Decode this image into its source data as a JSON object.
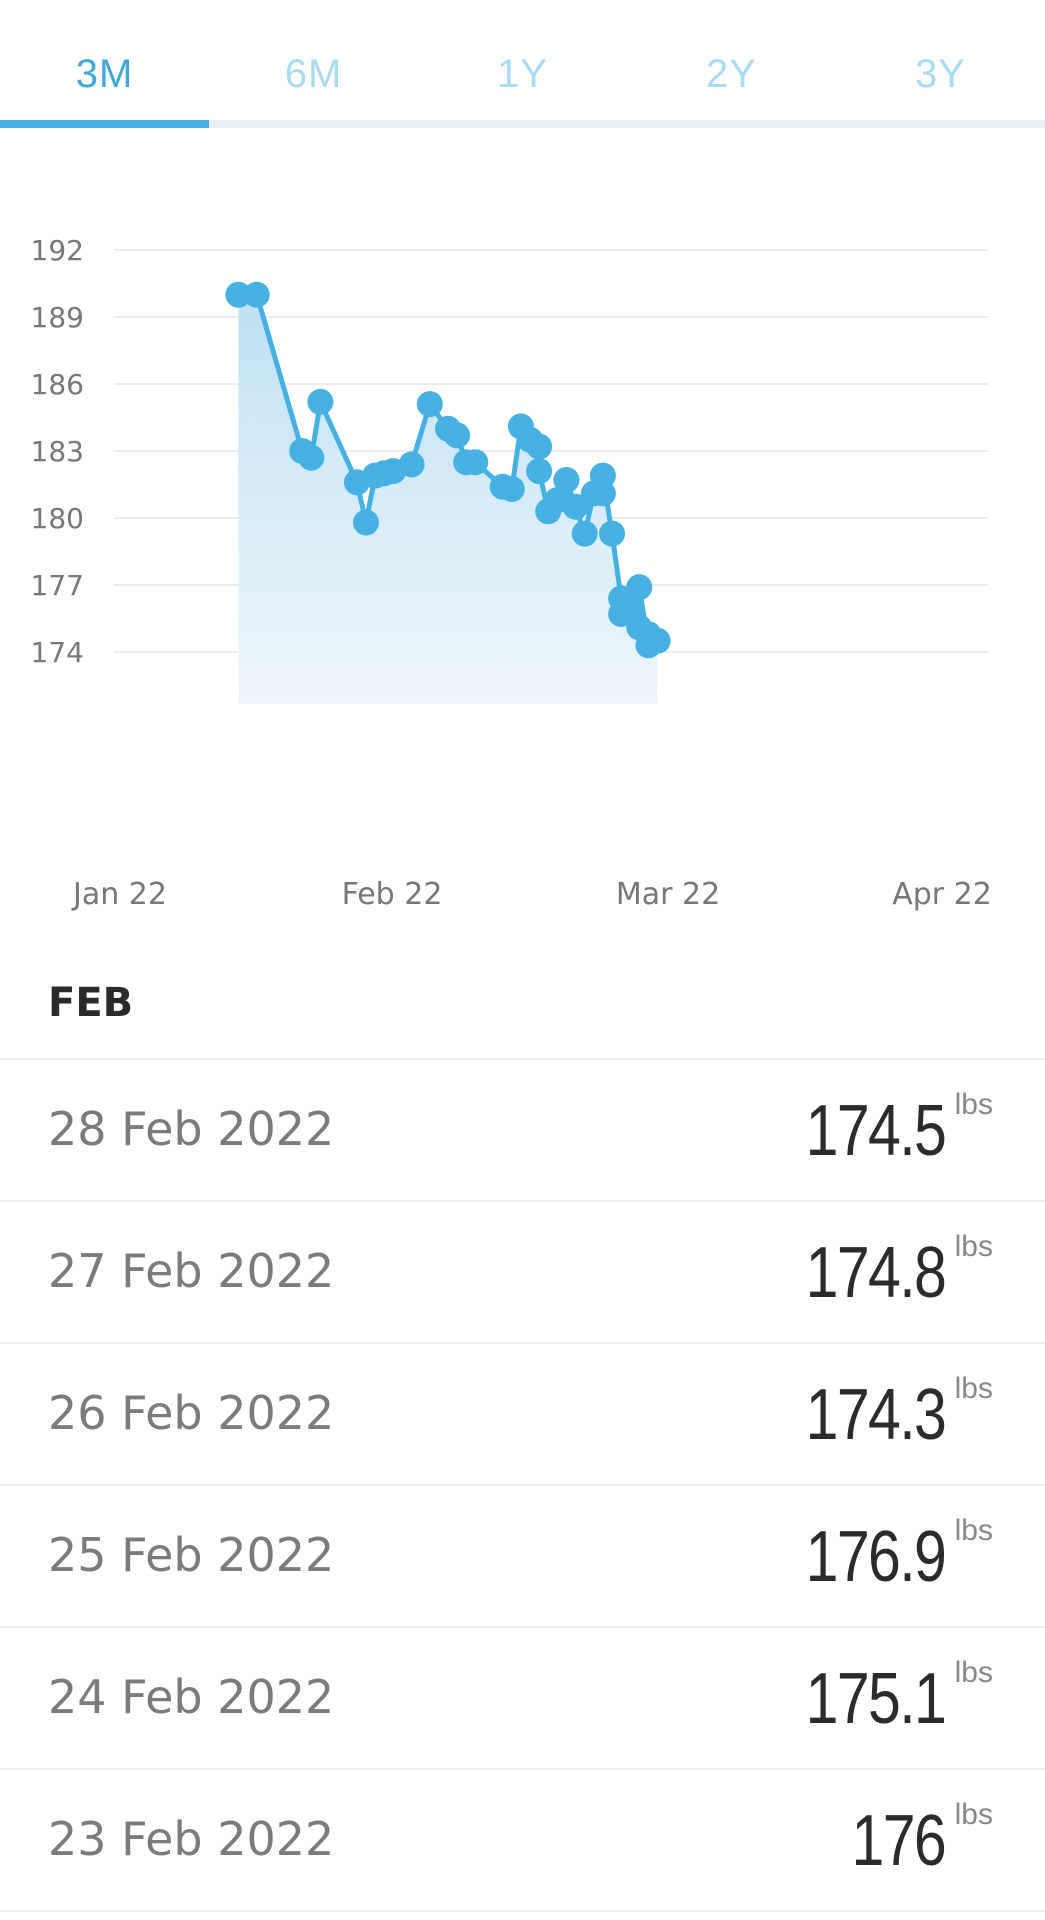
{
  "tabs": [
    {
      "label": "3M",
      "active": true
    },
    {
      "label": "6M",
      "active": false
    },
    {
      "label": "1Y",
      "active": false
    },
    {
      "label": "2Y",
      "active": false
    },
    {
      "label": "3Y",
      "active": false
    }
  ],
  "colors": {
    "accent": "#45b1e3",
    "tab_inactive": "#a9dcf1"
  },
  "chart_data": {
    "type": "area",
    "ylim": [
      174,
      192
    ],
    "yticks": [
      192,
      189,
      186,
      183,
      180,
      177,
      174
    ],
    "xticks": [
      "Jan 22",
      "Feb 22",
      "Mar 22",
      "Apr 22"
    ],
    "x_range": [
      "2022-01-01",
      "2022-04-01"
    ],
    "grid": true,
    "series": [
      {
        "points": [
          [
            "2022-01-14",
            190.0
          ],
          [
            "2022-01-16",
            190.0
          ],
          [
            "2022-01-21",
            183.0
          ],
          [
            "2022-01-22",
            182.7
          ],
          [
            "2022-01-23",
            185.2
          ],
          [
            "2022-01-27",
            181.6
          ],
          [
            "2022-01-28",
            179.8
          ],
          [
            "2022-01-29",
            181.9
          ],
          [
            "2022-01-30",
            182.0
          ],
          [
            "2022-01-31",
            182.1
          ],
          [
            "2022-02-02",
            182.4
          ],
          [
            "2022-02-04",
            185.1
          ],
          [
            "2022-02-06",
            184.0
          ],
          [
            "2022-02-07",
            183.7
          ],
          [
            "2022-02-08",
            182.5
          ],
          [
            "2022-02-09",
            182.5
          ],
          [
            "2022-02-12",
            181.4
          ],
          [
            "2022-02-13",
            181.3
          ],
          [
            "2022-02-14",
            184.1
          ],
          [
            "2022-02-15",
            183.5
          ],
          [
            "2022-02-16",
            183.2
          ],
          [
            "2022-02-16",
            182.1
          ],
          [
            "2022-02-17",
            180.3
          ],
          [
            "2022-02-18",
            180.8
          ],
          [
            "2022-02-19",
            181.7
          ],
          [
            "2022-02-20",
            180.5
          ],
          [
            "2022-02-21",
            179.3
          ],
          [
            "2022-02-22",
            181.1
          ],
          [
            "2022-02-23",
            181.1
          ],
          [
            "2022-02-23",
            181.9
          ],
          [
            "2022-02-24",
            179.3
          ],
          [
            "2022-02-25",
            176.4
          ],
          [
            "2022-02-25",
            175.7
          ],
          [
            "2022-02-26",
            176.0
          ],
          [
            "2022-02-27",
            175.1
          ],
          [
            "2022-02-27",
            176.9
          ],
          [
            "2022-02-28",
            174.3
          ],
          [
            "2022-02-28",
            174.8
          ],
          [
            "2022-03-01",
            174.5
          ]
        ]
      }
    ]
  },
  "month_header": "FEB",
  "entries": [
    {
      "date": "28 Feb 2022",
      "weight": "174.5",
      "unit": "lbs"
    },
    {
      "date": "27 Feb 2022",
      "weight": "174.8",
      "unit": "lbs"
    },
    {
      "date": "26 Feb 2022",
      "weight": "174.3",
      "unit": "lbs"
    },
    {
      "date": "25 Feb 2022",
      "weight": "176.9",
      "unit": "lbs"
    },
    {
      "date": "24 Feb 2022",
      "weight": "175.1",
      "unit": "lbs"
    },
    {
      "date": "23 Feb 2022",
      "weight": "176",
      "unit": "lbs"
    }
  ]
}
